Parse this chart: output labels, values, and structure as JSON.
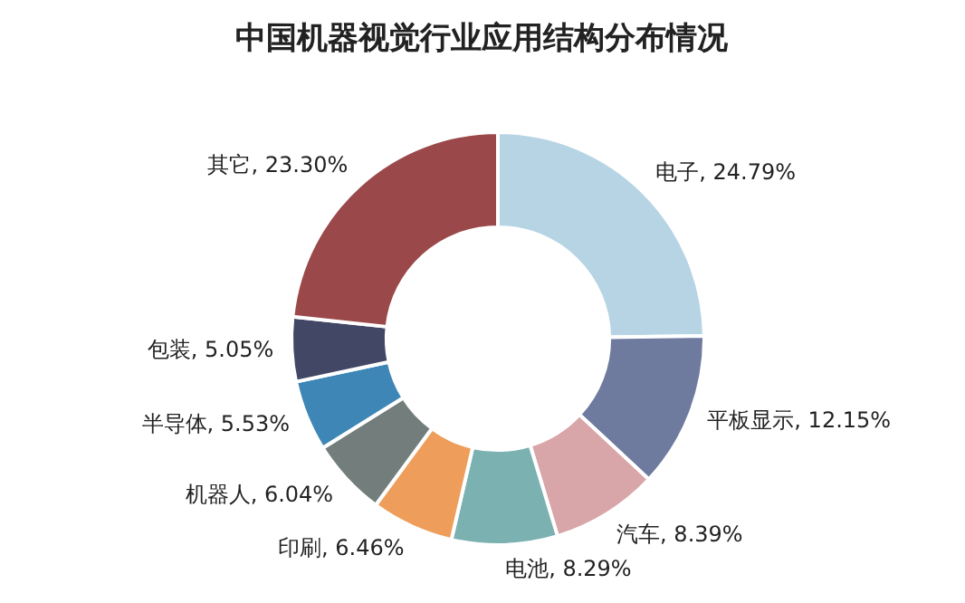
{
  "chart_data": {
    "type": "donut",
    "title": "中国机器视觉行业应用结构分布情况",
    "categories": [
      "电子",
      "平板显示",
      "汽车",
      "电池",
      "印刷",
      "机器人",
      "半导体",
      "包装",
      "其它"
    ],
    "values": [
      24.79,
      12.15,
      8.39,
      8.29,
      6.46,
      6.04,
      5.53,
      5.05,
      23.3
    ],
    "colors": [
      "#b7d4e4",
      "#6f7a9f",
      "#d8a5a8",
      "#7bb1b1",
      "#ee9e5a",
      "#737e7c",
      "#3d86b5",
      "#424766",
      "#9a4849"
    ],
    "value_labels": [
      "24.79%",
      "12.15%",
      "8.39%",
      "8.29%",
      "6.46%",
      "6.04%",
      "5.53%",
      "5.05%",
      "23.30%"
    ],
    "legend": false
  }
}
